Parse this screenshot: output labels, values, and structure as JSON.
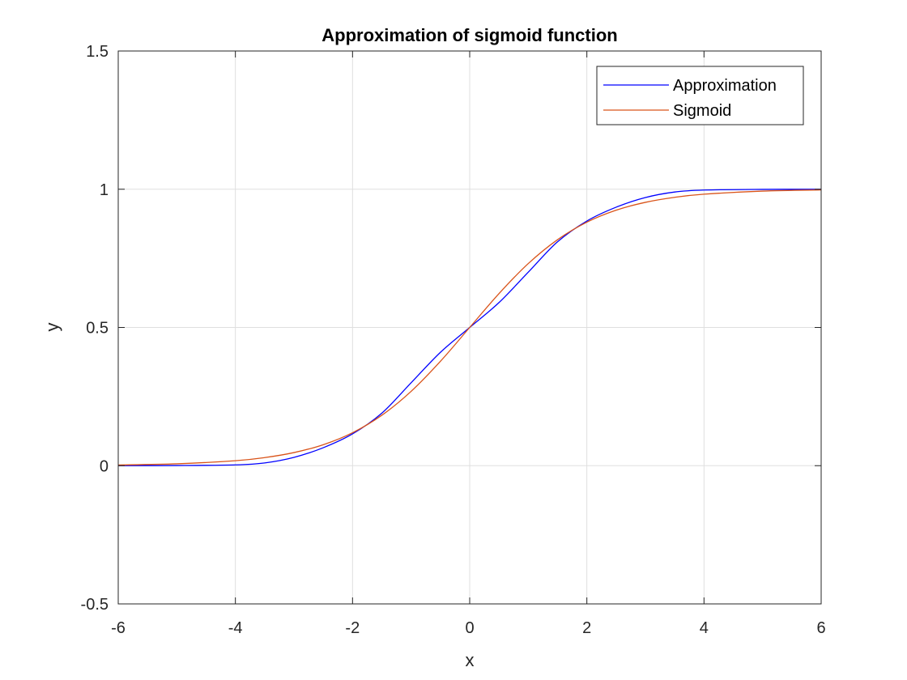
{
  "chart_data": {
    "type": "line",
    "title": "Approximation of sigmoid function",
    "xlabel": "x",
    "ylabel": "y",
    "xlim": [
      -6,
      6
    ],
    "ylim": [
      -0.5,
      1.5
    ],
    "xticks": [
      -6,
      -4,
      -2,
      0,
      2,
      4,
      6
    ],
    "xtick_labels": [
      "-6",
      "-4",
      "-2",
      "0",
      "2",
      "4",
      "6"
    ],
    "yticks": [
      -0.5,
      0,
      0.5,
      1,
      1.5
    ],
    "ytick_labels": [
      "-0.5",
      "0",
      "0.5",
      "1",
      "1.5"
    ],
    "grid": true,
    "legend_position": "top-right",
    "series": [
      {
        "name": "Approximation",
        "color": "#0000ff",
        "x": [
          -6,
          -5,
          -4,
          -3.5,
          -3,
          -2.5,
          -2,
          -1.5,
          -1,
          -0.5,
          0,
          0.5,
          1,
          1.5,
          2,
          2.5,
          3,
          3.5,
          4,
          5,
          6
        ],
        "y": [
          0,
          0.0005,
          0.003,
          0.01,
          0.03,
          0.065,
          0.115,
          0.19,
          0.3,
          0.41,
          0.5,
          0.59,
          0.7,
          0.81,
          0.885,
          0.935,
          0.97,
          0.99,
          0.997,
          0.9995,
          1
        ]
      },
      {
        "name": "Sigmoid",
        "color": "#d95319",
        "x": [
          -6,
          -5,
          -4,
          -3.5,
          -3,
          -2.5,
          -2,
          -1.5,
          -1,
          -0.5,
          0,
          0.5,
          1,
          1.5,
          2,
          2.5,
          3,
          3.5,
          4,
          5,
          6
        ],
        "y": [
          0.0025,
          0.0067,
          0.018,
          0.0293,
          0.0474,
          0.0759,
          0.1192,
          0.1824,
          0.2689,
          0.3775,
          0.5,
          0.6225,
          0.7311,
          0.8176,
          0.8808,
          0.9241,
          0.9526,
          0.9707,
          0.982,
          0.9933,
          0.9975
        ]
      }
    ]
  },
  "colors": {
    "axis": "#262626",
    "grid": "#dfdfdf",
    "background": "#ffffff"
  }
}
